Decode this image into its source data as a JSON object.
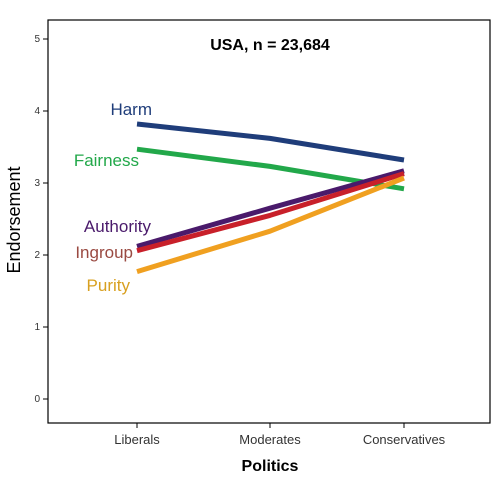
{
  "chart_data": {
    "type": "line",
    "title": "USA, n = 23,684",
    "xlabel": "Politics",
    "ylabel": "Endorsement",
    "categories": [
      "Liberals",
      "Moderates",
      "Conservatives"
    ],
    "ylim": [
      0,
      5
    ],
    "yticks": [
      "0",
      "1",
      "2",
      "3",
      "4",
      "5"
    ],
    "grid": false,
    "legend": "inline labels at left of lines",
    "series": [
      {
        "name": "Harm",
        "color": "#1f3d7a",
        "values": [
          3.82,
          3.62,
          3.32
        ]
      },
      {
        "name": "Fairness",
        "color": "#22a84a",
        "values": [
          3.47,
          3.23,
          2.92
        ]
      },
      {
        "name": "Authority",
        "color": "#4a1a6b",
        "values": [
          2.12,
          2.65,
          3.17
        ]
      },
      {
        "name": "Ingroup",
        "color": "#c8202a",
        "values": [
          2.06,
          2.55,
          3.13
        ]
      },
      {
        "name": "Purity",
        "color": "#f0a020",
        "values": [
          1.77,
          2.33,
          3.07
        ]
      }
    ],
    "label_colors": {
      "Harm": "#1f3d7a",
      "Fairness": "#22a84a",
      "Authority": "#4a1a6b",
      "Ingroup": "#9a4a42",
      "Purity": "#d8a020"
    }
  }
}
